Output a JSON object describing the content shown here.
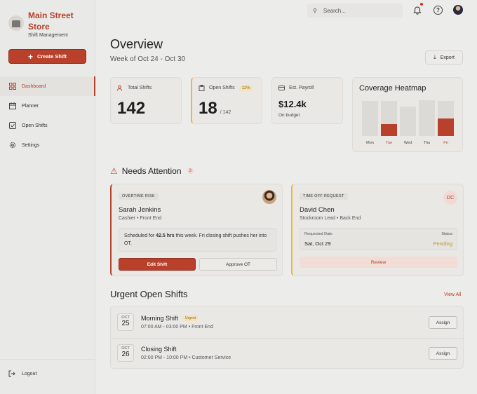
{
  "brand": {
    "name": "Main Street Store",
    "subtitle": "Shift Management"
  },
  "sidebar": {
    "create_label": "Create Shift",
    "items": [
      {
        "label": "Dashboard",
        "icon": "grid-icon",
        "active": true
      },
      {
        "label": "Planner",
        "icon": "calendar-icon"
      },
      {
        "label": "Open Shifts",
        "icon": "checkbox-icon"
      },
      {
        "label": "Settings",
        "icon": "gear-icon"
      }
    ],
    "logout_label": "Logout"
  },
  "topbar": {
    "search_placeholder": "Search..."
  },
  "header": {
    "title": "Overview",
    "subtitle": "Week of Oct 24 - Oct 30",
    "export_label": "Export"
  },
  "stats": {
    "total": {
      "label": "Total Shifts",
      "value": "142"
    },
    "open": {
      "label": "Open Shifts",
      "badge": "12%",
      "value": "18",
      "of": "/ 142"
    },
    "payroll": {
      "label": "Est. Payroll",
      "value": "$12.4k",
      "note": "On budget"
    }
  },
  "heatmap": {
    "title": "Coverage Heatmap",
    "days": [
      "Mon",
      "Tue",
      "Wed",
      "Thu",
      "Fri"
    ]
  },
  "chart_data": {
    "type": "bar",
    "title": "Coverage Heatmap",
    "categories": [
      "Mon",
      "Tue",
      "Wed",
      "Thu",
      "Fri"
    ],
    "series": [
      {
        "values": [
          0.96,
          0.96,
          0.81,
          0.98,
          0.96
        ]
      },
      {
        "values": [
          0,
          0.33,
          0,
          0,
          0.48
        ]
      }
    ],
    "accent": "#b9412b"
  },
  "attention": {
    "title": "Needs Attention",
    "count": "3",
    "cards": [
      {
        "tag": "OVERTIME RISK",
        "name": "Sarah Jenkins",
        "role": "Cashier • Front End",
        "note_pre": "Scheduled for ",
        "note_hours": "42.5 hrs",
        "note_post": " this week. Fri closing shift pushes her into OT.",
        "primary": "Edit Shift",
        "secondary": "Approve OT"
      },
      {
        "tag": "TIME OFF REQUEST",
        "name": "David Chen",
        "role": "Stockroom Lead • Back End",
        "initials": "DC",
        "req_label": "Requested Date",
        "req_value": "Sat, Oct 29",
        "status_label": "Status",
        "status_value": "Pending",
        "action": "Review"
      }
    ]
  },
  "urgent": {
    "title": "Urgent Open Shifts",
    "view_all": "View All",
    "shifts": [
      {
        "month": "OCT",
        "day": "25",
        "name": "Morning Shift",
        "badge": "Urgent",
        "time": "07:00 AM - 03:00 PM • Front End",
        "action": "Assign"
      },
      {
        "month": "OCT",
        "day": "26",
        "name": "Closing Shift",
        "badge": "",
        "time": "02:00 PM - 10:00 PM • Customer Service",
        "action": "Assign"
      }
    ]
  }
}
